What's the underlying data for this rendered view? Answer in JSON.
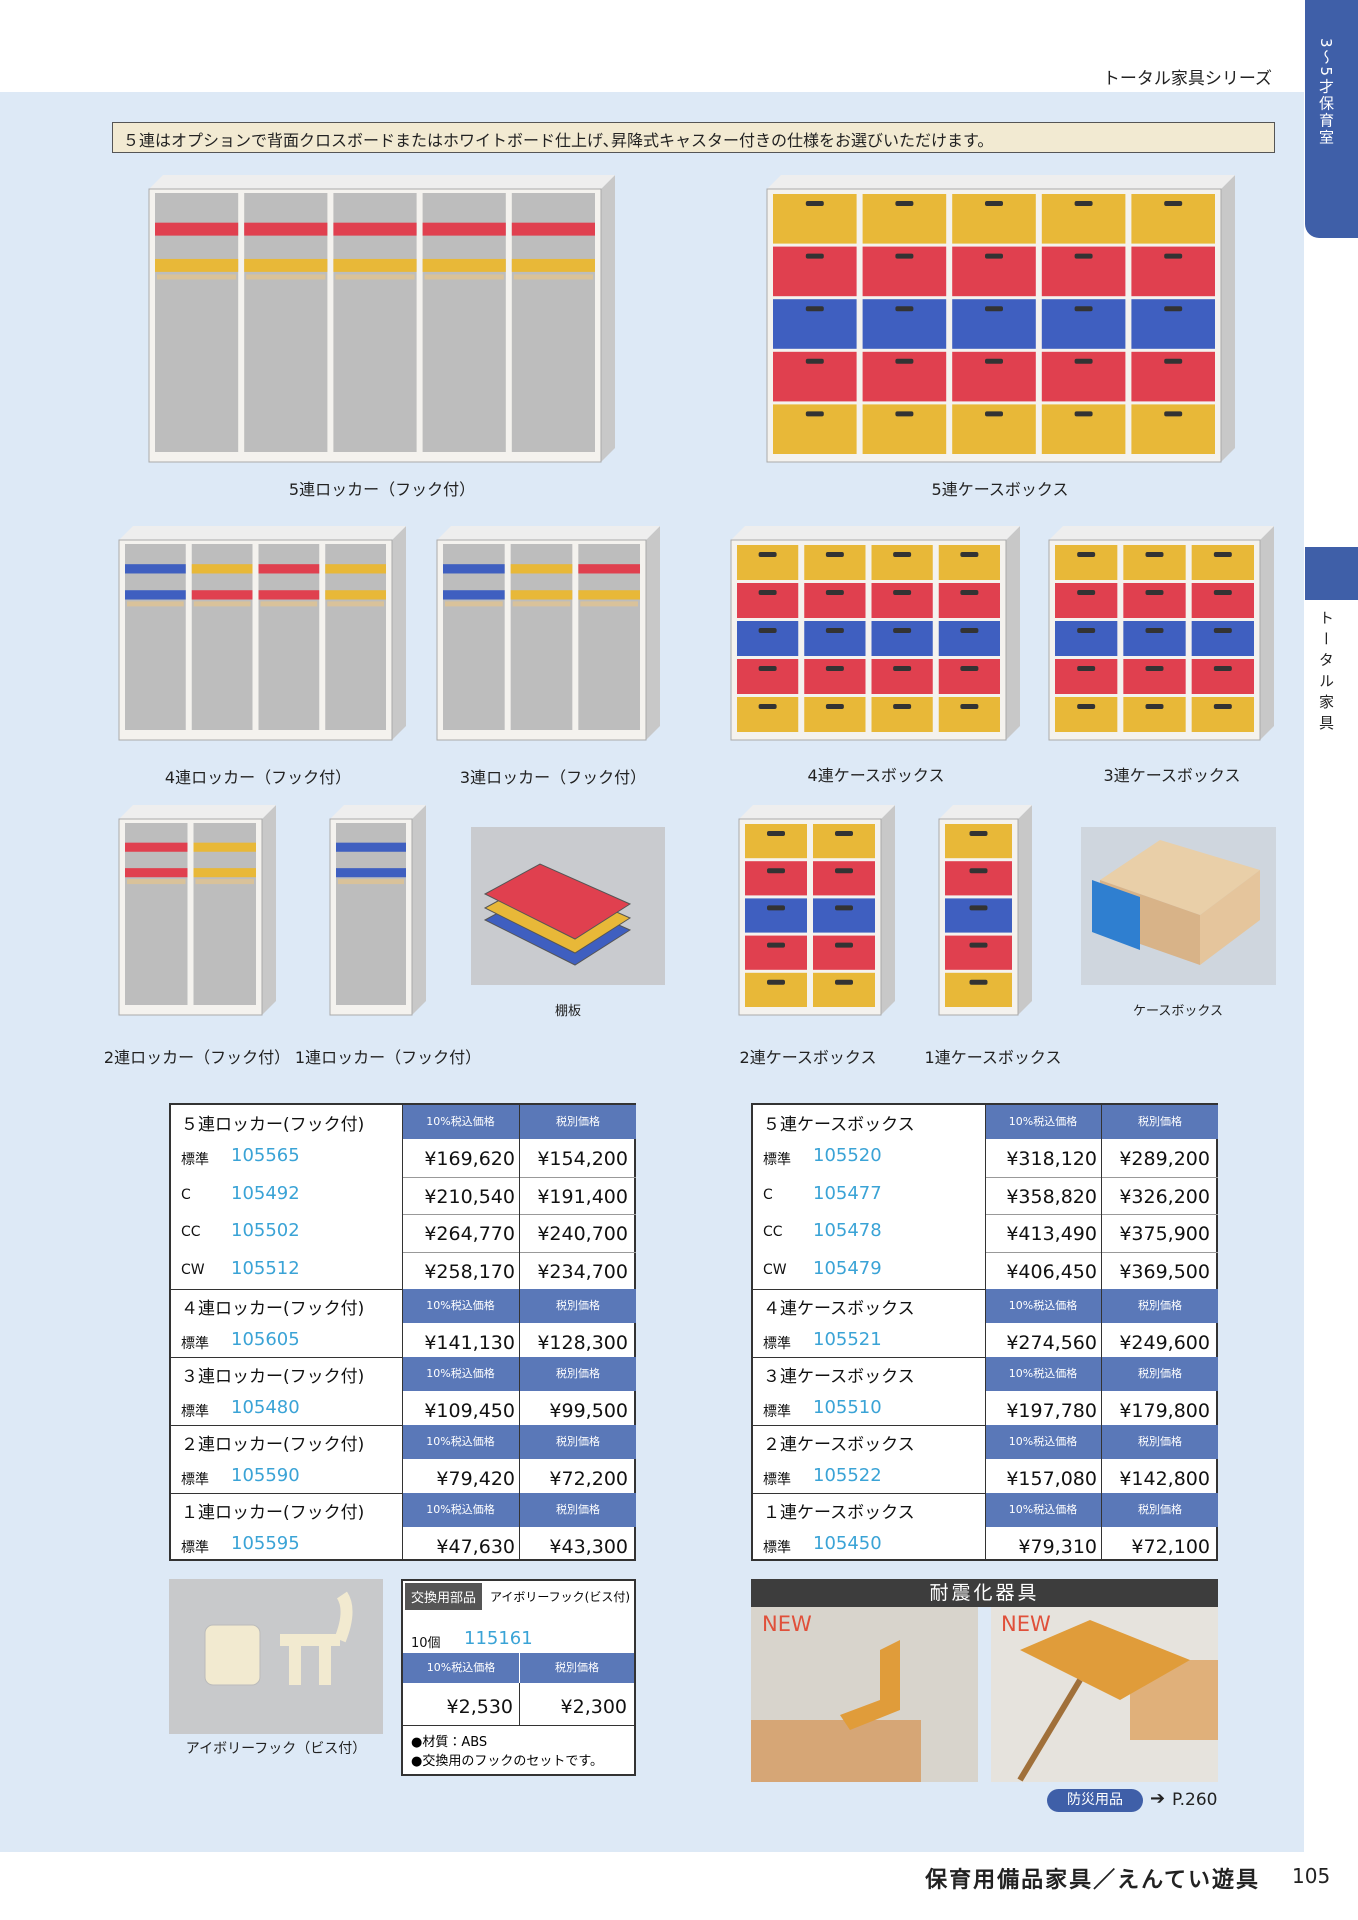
{
  "header": {
    "series": "トータル家具シリーズ",
    "note": "５連はオプションで背面クロスボードまたはホワイトボード仕上げ､昇降式キャスター付きの仕様をお選びいただけます。"
  },
  "side_tabs": [
    "3〜5才保育室",
    "トータル家具"
  ],
  "product_captions": [
    "5連ロッカー（フック付）",
    "5連ケースボックス",
    "4連ロッカー（フック付）",
    "3連ロッカー（フック付）",
    "4連ケースボックス",
    "3連ケースボックス",
    "2連ロッカー（フック付）",
    "1連ロッカー（フック付）",
    "棚板",
    "2連ケースボックス",
    "1連ケースボックス",
    "ケースボックス"
  ],
  "price_tables": [
    {
      "sections": [
        {
          "title": "５連ロッカー(フック付)",
          "header_tax_in": "10%税込価格",
          "header_tax_ex": "税別価格",
          "rows": [
            {
              "label": "標準",
              "code": "105565",
              "price_in": "¥169,620",
              "price_ex": "¥154,200"
            },
            {
              "label": "C",
              "code": "105492",
              "price_in": "¥210,540",
              "price_ex": "¥191,400"
            },
            {
              "label": "CC",
              "code": "105502",
              "price_in": "¥264,770",
              "price_ex": "¥240,700"
            },
            {
              "label": "CW",
              "code": "105512",
              "price_in": "¥258,170",
              "price_ex": "¥234,700"
            }
          ]
        },
        {
          "title": "４連ロッカー(フック付)",
          "header_tax_in": "10%税込価格",
          "header_tax_ex": "税別価格",
          "rows": [
            {
              "label": "標準",
              "code": "105605",
              "price_in": "¥141,130",
              "price_ex": "¥128,300"
            }
          ]
        },
        {
          "title": "３連ロッカー(フック付)",
          "header_tax_in": "10%税込価格",
          "header_tax_ex": "税別価格",
          "rows": [
            {
              "label": "標準",
              "code": "105480",
              "price_in": "¥109,450",
              "price_ex": "¥99,500"
            }
          ]
        },
        {
          "title": "２連ロッカー(フック付)",
          "header_tax_in": "10%税込価格",
          "header_tax_ex": "税別価格",
          "rows": [
            {
              "label": "標準",
              "code": "105590",
              "price_in": "¥79,420",
              "price_ex": "¥72,200"
            }
          ]
        },
        {
          "title": "１連ロッカー(フック付)",
          "header_tax_in": "10%税込価格",
          "header_tax_ex": "税別価格",
          "rows": [
            {
              "label": "標準",
              "code": "105595",
              "price_in": "¥47,630",
              "price_ex": "¥43,300"
            }
          ]
        }
      ]
    },
    {
      "sections": [
        {
          "title": "５連ケースボックス",
          "header_tax_in": "10%税込価格",
          "header_tax_ex": "税別価格",
          "rows": [
            {
              "label": "標準",
              "code": "105520",
              "price_in": "¥318,120",
              "price_ex": "¥289,200"
            },
            {
              "label": "C",
              "code": "105477",
              "price_in": "¥358,820",
              "price_ex": "¥326,200"
            },
            {
              "label": "CC",
              "code": "105478",
              "price_in": "¥413,490",
              "price_ex": "¥375,900"
            },
            {
              "label": "CW",
              "code": "105479",
              "price_in": "¥406,450",
              "price_ex": "¥369,500"
            }
          ]
        },
        {
          "title": "４連ケースボックス",
          "header_tax_in": "10%税込価格",
          "header_tax_ex": "税別価格",
          "rows": [
            {
              "label": "標準",
              "code": "105521",
              "price_in": "¥274,560",
              "price_ex": "¥249,600"
            }
          ]
        },
        {
          "title": "３連ケースボックス",
          "header_tax_in": "10%税込価格",
          "header_tax_ex": "税別価格",
          "rows": [
            {
              "label": "標準",
              "code": "105510",
              "price_in": "¥197,780",
              "price_ex": "¥179,800"
            }
          ]
        },
        {
          "title": "２連ケースボックス",
          "header_tax_in": "10%税込価格",
          "header_tax_ex": "税別価格",
          "rows": [
            {
              "label": "標準",
              "code": "105522",
              "price_in": "¥157,080",
              "price_ex": "¥142,800"
            }
          ]
        },
        {
          "title": "１連ケースボックス",
          "header_tax_in": "10%税込価格",
          "header_tax_ex": "税別価格",
          "rows": [
            {
              "label": "標準",
              "code": "105450",
              "price_in": "¥79,310",
              "price_ex": "¥72,100"
            }
          ]
        }
      ]
    }
  ],
  "replacement_part": {
    "tag": "交換用部品",
    "name": "アイボリーフック(ビス付)",
    "qty": "10個",
    "code": "115161",
    "header_tax_in": "10%税込価格",
    "header_tax_ex": "税別価格",
    "price_in": "¥2,530",
    "price_ex": "¥2,300",
    "notes": [
      "●材質：ABS",
      "●交換用のフックのセットです。"
    ],
    "caption": "アイボリーフック（ビス付）"
  },
  "seismic": {
    "title": "耐震化器具",
    "new_labels": [
      "NEW",
      "NEW"
    ],
    "link_badge": "防災用品",
    "link_page": "P.260"
  },
  "footer": {
    "title": "保育用備品家具／えんてい遊具",
    "page": "105"
  }
}
